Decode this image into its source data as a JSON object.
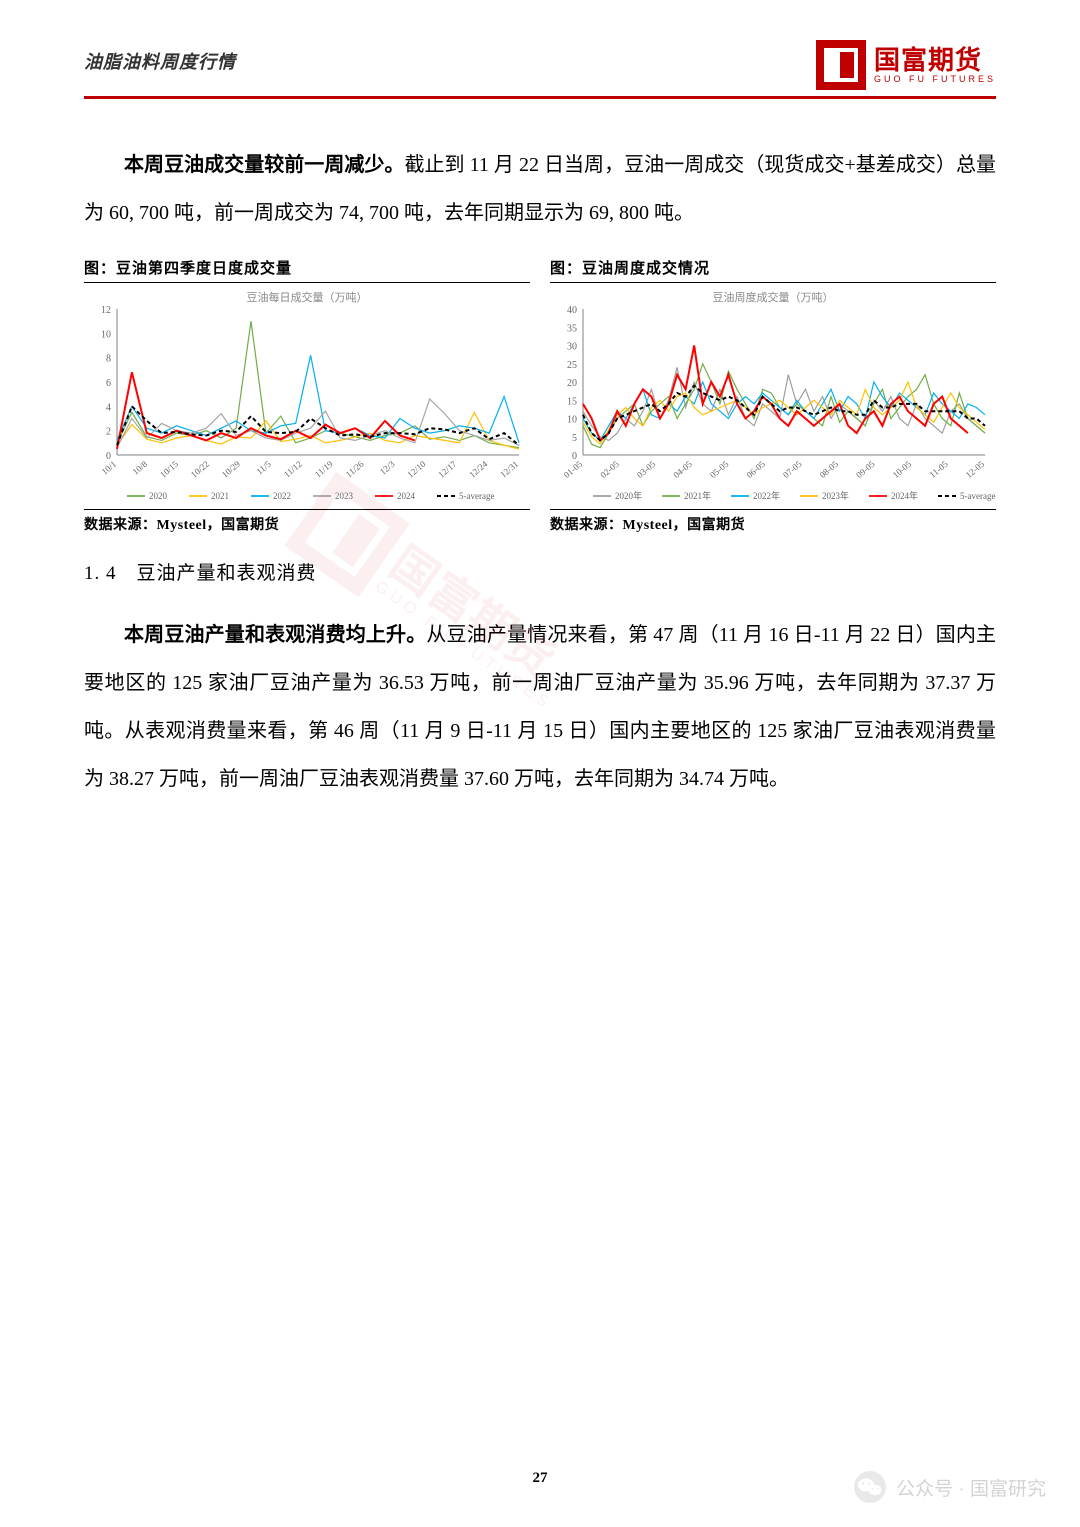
{
  "header": {
    "title": "油脂油料周度行情",
    "logo_cn": "国富期货",
    "logo_en": "GUO FU FUTURES"
  },
  "para1_bold": "本周豆油成交量较前一周减少。",
  "para1_rest": "截止到 11 月 22 日当周，豆油一周成交（现货成交+基差成交）总量为 60, 700 吨，前一周成交为 74, 700 吨，去年同期显示为 69, 800 吨。",
  "chart_left": {
    "type": "line",
    "caption": "图：豆油第四季度日度成交量",
    "subtitle": "豆油每日成交量（万吨）",
    "source": "数据来源：Mysteel，国富期货",
    "ylim": [
      0,
      12
    ],
    "ytick_step": 2,
    "x_labels": [
      "10/1",
      "10/8",
      "10/15",
      "10/22",
      "10/29",
      "11/5",
      "11/12",
      "11/19",
      "11/26",
      "12/3",
      "12/10",
      "12/17",
      "12/24",
      "12/31"
    ],
    "series": [
      {
        "name": "2020",
        "color": "#70ad47",
        "width": 1.2,
        "dash": "",
        "values": [
          1.0,
          3.5,
          1.5,
          1.2,
          1.8,
          1.6,
          2.0,
          1.4,
          2.2,
          11.0,
          1.8,
          3.2,
          1.0,
          1.4,
          2.0,
          1.8,
          1.5,
          1.2,
          1.6,
          1.8,
          2.4,
          1.3,
          1.5,
          1.2,
          1.6,
          1.0,
          0.8,
          0.6
        ]
      },
      {
        "name": "2021",
        "color": "#ffc000",
        "width": 1.2,
        "dash": "",
        "values": [
          0.8,
          2.5,
          1.3,
          1.0,
          1.4,
          1.6,
          1.2,
          0.9,
          1.5,
          1.4,
          2.8,
          1.1,
          1.3,
          1.6,
          1.0,
          1.2,
          1.5,
          1.8,
          1.2,
          1.0,
          1.6,
          1.4,
          1.2,
          1.0,
          3.5,
          1.2,
          0.8,
          0.5
        ]
      },
      {
        "name": "2022",
        "color": "#00b0f0",
        "width": 1.2,
        "dash": "",
        "values": [
          1.2,
          4.0,
          2.2,
          1.8,
          2.4,
          2.0,
          1.6,
          2.2,
          2.8,
          2.0,
          1.8,
          2.4,
          2.6,
          8.2,
          2.0,
          1.8,
          2.2,
          1.6,
          1.4,
          3.0,
          2.2,
          1.8,
          2.0,
          2.4,
          2.2,
          1.8,
          4.8,
          1.0
        ]
      },
      {
        "name": "2023",
        "color": "#a6a6a6",
        "width": 1.2,
        "dash": "",
        "values": [
          0.6,
          3.0,
          1.4,
          2.6,
          2.0,
          1.8,
          2.2,
          3.4,
          1.6,
          2.0,
          1.4,
          1.2,
          1.8,
          2.2,
          3.6,
          1.4,
          1.2,
          1.6,
          2.0,
          1.4,
          1.0,
          4.6,
          3.4,
          2.0,
          1.6,
          1.2,
          1.4,
          0.8
        ]
      },
      {
        "name": "2024",
        "color": "#ff0000",
        "width": 2.0,
        "dash": "",
        "values": [
          0.5,
          6.8,
          1.8,
          1.4,
          2.0,
          1.6,
          1.2,
          1.8,
          1.4,
          2.2,
          1.6,
          1.3,
          2.0,
          1.4,
          2.5,
          1.8,
          2.2,
          1.4,
          2.8,
          1.6,
          1.2
        ]
      },
      {
        "name": "5-average",
        "color": "#000000",
        "width": 2.0,
        "dash": "4 3",
        "values": [
          0.8,
          4.0,
          2.8,
          1.8,
          1.9,
          1.7,
          1.6,
          2.0,
          1.9,
          3.2,
          1.9,
          1.8,
          1.9,
          3.0,
          2.2,
          1.6,
          1.7,
          1.5,
          1.8,
          1.8,
          1.7,
          2.2,
          2.1,
          1.8,
          2.2,
          1.3,
          1.8,
          0.8
        ]
      }
    ],
    "legend_labels": [
      "2020",
      "2021",
      "2022",
      "2023",
      "2024",
      "5-average"
    ]
  },
  "chart_right": {
    "type": "line",
    "caption": "图：豆油周度成交情况",
    "subtitle": "豆油周度成交量（万吨）",
    "source": "数据来源：Mysteel，国富期货",
    "ylim": [
      0,
      40
    ],
    "ytick_step": 5,
    "x_labels": [
      "01-05",
      "02-05",
      "03-05",
      "04-05",
      "05-05",
      "06-05",
      "07-05",
      "08-05",
      "09-05",
      "10-05",
      "11-05",
      "12-05"
    ],
    "series": [
      {
        "name": "2020年",
        "color": "#9e9e9e",
        "width": 1.2,
        "dash": "",
        "values": [
          12,
          8,
          5,
          4,
          6,
          10,
          8,
          12,
          18,
          10,
          15,
          24,
          13,
          20,
          14,
          12,
          18,
          11,
          16,
          10,
          8,
          14,
          12,
          10,
          22,
          14,
          18,
          12,
          16,
          10,
          14,
          12,
          10,
          8,
          15,
          12,
          16,
          10,
          8,
          14,
          10,
          8,
          6,
          12,
          14,
          10,
          8,
          6
        ]
      },
      {
        "name": "2021年",
        "color": "#70ad47",
        "width": 1.2,
        "dash": "",
        "values": [
          8,
          3,
          2,
          6,
          10,
          12,
          14,
          8,
          12,
          14,
          16,
          10,
          14,
          18,
          25,
          20,
          14,
          23,
          18,
          14,
          10,
          18,
          17,
          13,
          11,
          14,
          12,
          10,
          8,
          16,
          9,
          12,
          10,
          8,
          14,
          18,
          10,
          13,
          16,
          18,
          22,
          14,
          10,
          8,
          17,
          10,
          8,
          6
        ]
      },
      {
        "name": "2022年",
        "color": "#00b0f0",
        "width": 1.2,
        "dash": "",
        "values": [
          10,
          6,
          4,
          8,
          12,
          10,
          14,
          18,
          11,
          10,
          14,
          12,
          16,
          14,
          20,
          14,
          12,
          10,
          14,
          16,
          14,
          17,
          15,
          13,
          11,
          15,
          12,
          10,
          14,
          18,
          12,
          16,
          14,
          10,
          20,
          16,
          13,
          17,
          15,
          13,
          11,
          17,
          14,
          12,
          10,
          14,
          13,
          11
        ]
      },
      {
        "name": "2023年",
        "color": "#ffc000",
        "width": 1.2,
        "dash": "",
        "values": [
          9,
          5,
          3,
          7,
          11,
          13,
          10,
          8,
          13,
          15,
          12,
          16,
          17,
          13,
          11,
          12,
          13,
          14,
          15,
          13,
          11,
          13,
          14,
          15,
          13,
          11,
          13,
          15,
          13,
          11,
          15,
          13,
          11,
          18,
          13,
          11,
          13,
          15,
          20,
          13,
          11,
          9,
          13,
          17,
          13,
          11,
          9,
          7
        ]
      },
      {
        "name": "2024年",
        "color": "#ff0000",
        "width": 2.0,
        "dash": "",
        "values": [
          14,
          10,
          4,
          6,
          12,
          8,
          14,
          18,
          16,
          10,
          14,
          22,
          18,
          30,
          14,
          20,
          16,
          22,
          14,
          10,
          12,
          16,
          14,
          10,
          8,
          12,
          10,
          8,
          10,
          12,
          14,
          8,
          6,
          10,
          12,
          8,
          14,
          16,
          12,
          10,
          8,
          14,
          16,
          10,
          8,
          6
        ]
      },
      {
        "name": "5-average",
        "color": "#000000",
        "width": 2.0,
        "dash": "4 3",
        "values": [
          11,
          6,
          4,
          6,
          10,
          11,
          12,
          13,
          14,
          12,
          14,
          17,
          16,
          19,
          17,
          16,
          15,
          16,
          15,
          13,
          11,
          16,
          14,
          12,
          13,
          13,
          12,
          11,
          12,
          13,
          12,
          12,
          11,
          11,
          15,
          13,
          13,
          14,
          14,
          14,
          12,
          12,
          12,
          12,
          12,
          10,
          10,
          8
        ]
      }
    ],
    "legend_labels": [
      "2020年",
      "2021年",
      "2022年",
      "2023年",
      "2024年",
      "5-average"
    ]
  },
  "section_heading": "1. 4　豆油产量和表观消费",
  "para2_bold": "本周豆油产量和表观消费均上升。",
  "para2_rest": "从豆油产量情况来看，第 47 周（11 月 16 日-11 月 22 日）国内主要地区的 125 家油厂豆油产量为 36.53 万吨，前一周油厂豆油产量为 35.96 万吨，去年同期为 37.37 万吨。从表观消费量来看，第 46 周（11 月 9 日-11 月 15 日）国内主要地区的 125 家油厂豆油表观消费量为 38.27 万吨，前一周油厂豆油表观消费量 37.60 万吨，去年同期为 34.74 万吨。",
  "page_number": "27",
  "wechat_attr": "公众号 · 国富研究",
  "palette": {
    "accent": "#c00000",
    "text": "#000000",
    "axis": "#808080",
    "axis_text": "#666666",
    "subtitle_text": "#888888"
  }
}
